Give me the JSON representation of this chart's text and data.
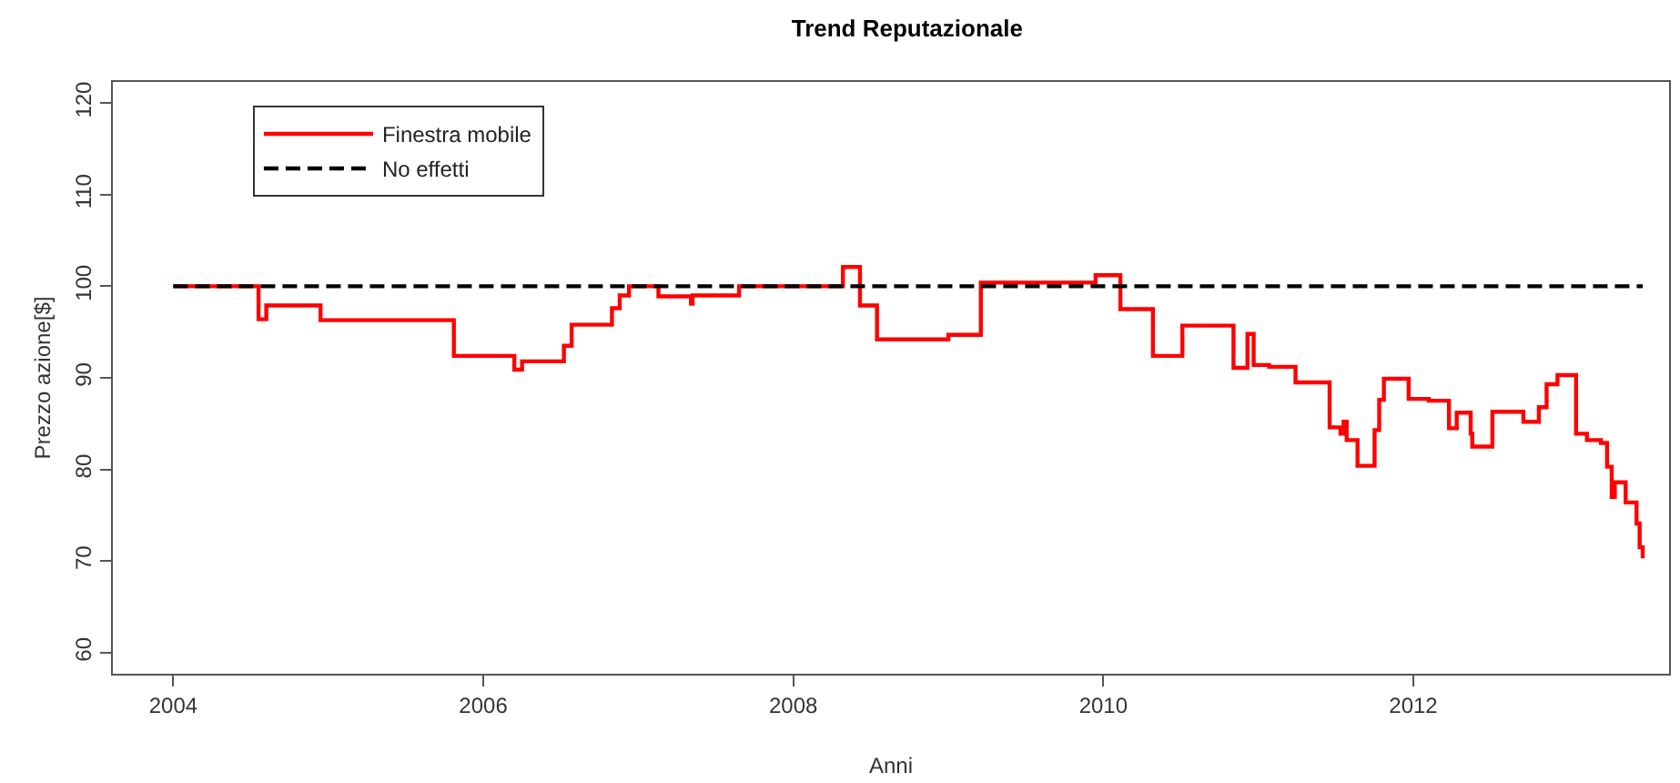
{
  "chart_data": {
    "type": "line",
    "title": "Trend Reputazionale",
    "xlabel": "Anni",
    "ylabel": "Prezzo azione[$]",
    "xlim": [
      2003.61,
      2013.65
    ],
    "ylim": [
      57.7,
      122.3
    ],
    "xticks": [
      2004,
      2006,
      2008,
      2010,
      2012
    ],
    "yticks": [
      60,
      70,
      80,
      90,
      100,
      110,
      120
    ],
    "grid": false,
    "legend": "top left",
    "marker": "none",
    "series": [
      {
        "name": "Finestra mobile",
        "type": "step",
        "color": "#ff0000",
        "line_style": "solid",
        "x": [
          2004.0,
          2004.55,
          2004.6,
          2004.95,
          2005.81,
          2006.2,
          2006.25,
          2006.52,
          2006.57,
          2006.83,
          2006.88,
          2006.94,
          2007.13,
          2007.34,
          2007.35,
          2007.65,
          2008.32,
          2008.43,
          2008.54,
          2009.0,
          2009.21,
          2009.95,
          2010.11,
          2010.32,
          2010.51,
          2010.84,
          2010.93,
          2010.97,
          2011.07,
          2011.24,
          2011.46,
          2011.53,
          2011.55,
          2011.57,
          2011.64,
          2011.75,
          2011.78,
          2011.81,
          2011.97,
          2012.1,
          2012.23,
          2012.28,
          2012.37,
          2012.38,
          2012.51,
          2012.71,
          2012.81,
          2012.86,
          2012.93,
          2013.05,
          2013.12,
          2013.21,
          2013.25,
          2013.28,
          2013.3,
          2013.37,
          2013.44,
          2013.46,
          2013.48
        ],
        "values": [
          100,
          96.4,
          97.9,
          96.3,
          92.4,
          90.9,
          91.8,
          93.5,
          95.8,
          97.6,
          99.0,
          100,
          98.9,
          98.1,
          99.0,
          100,
          102.1,
          97.9,
          94.2,
          94.7,
          100.4,
          101.2,
          97.5,
          92.4,
          95.7,
          91.1,
          94.8,
          91.4,
          91.2,
          89.5,
          84.6,
          83.9,
          85.2,
          83.2,
          80.4,
          84.3,
          87.6,
          89.9,
          87.7,
          87.5,
          84.5,
          86.2,
          83.9,
          82.5,
          86.3,
          85.2,
          86.8,
          89.3,
          90.3,
          83.9,
          83.2,
          82.9,
          80.3,
          77.0,
          78.6,
          76.4,
          74.1,
          71.5,
          70.3
        ]
      },
      {
        "name": "No effetti",
        "color": "#000000",
        "line_style": "dashed",
        "x": [
          2004,
          2013.48
        ],
        "values": [
          100,
          100
        ]
      }
    ]
  }
}
